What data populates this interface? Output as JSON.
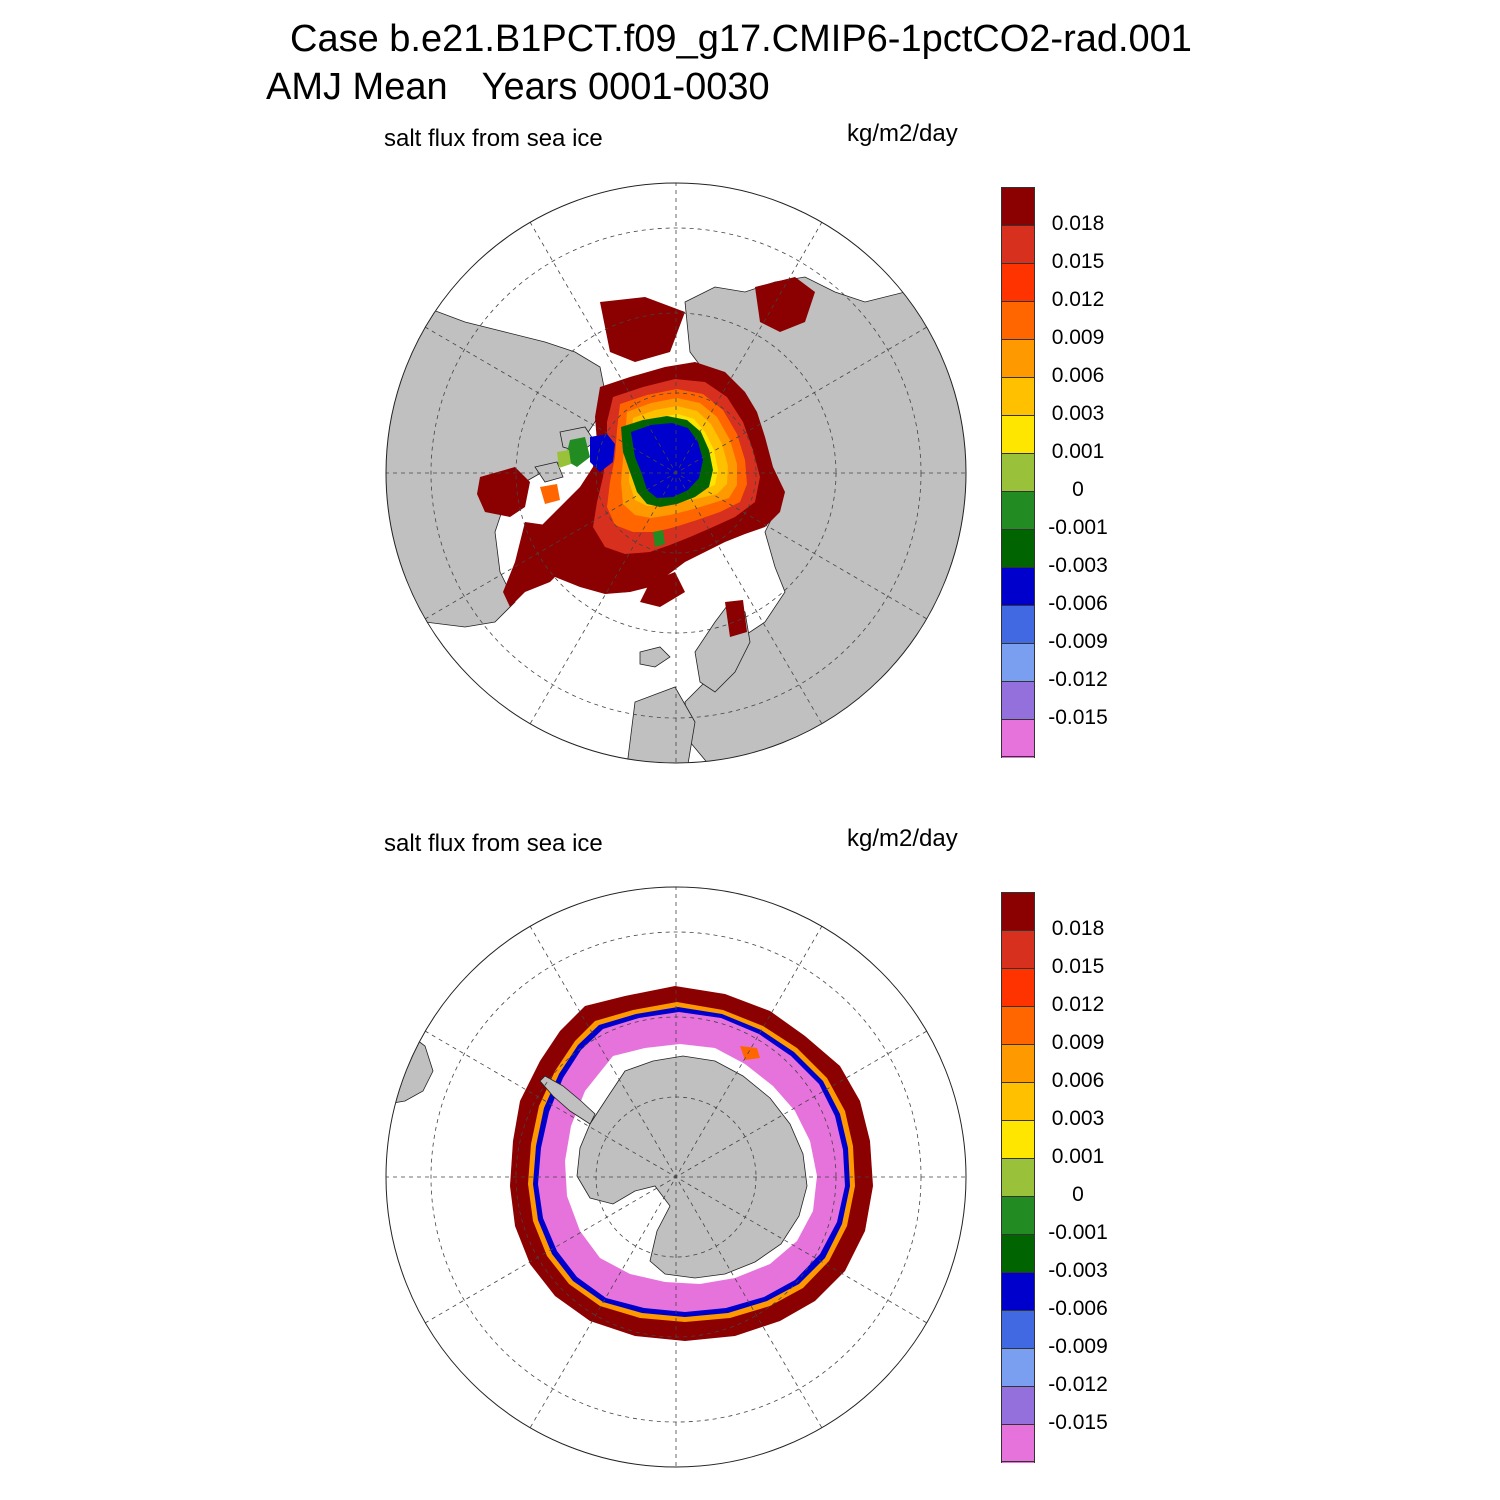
{
  "header": {
    "case_line": "Case b.e21.B1PCT.f09_g17.CMIP6-1pctCO2-rad.001",
    "period_label": "AMJ Mean",
    "years_label": "Years 0001-0030"
  },
  "panels": [
    {
      "id": "north",
      "hemisphere": "Arctic",
      "left_label": "salt flux from sea ice",
      "units": "kg/m2/day"
    },
    {
      "id": "south",
      "hemisphere": "Antarctic",
      "left_label": "salt flux from sea ice",
      "units": "kg/m2/day"
    }
  ],
  "colorbar": {
    "labels": [
      "0.018",
      "0.015",
      "0.012",
      "0.009",
      "0.006",
      "0.003",
      "0.001",
      "0",
      "-0.001",
      "-0.003",
      "-0.006",
      "-0.009",
      "-0.012",
      "-0.015"
    ],
    "colors": [
      "#8b0000",
      "#d7301f",
      "#ff3300",
      "#ff6600",
      "#ff9900",
      "#ffc000",
      "#ffe600",
      "#9ac13a",
      "#228b22",
      "#006400",
      "#0000cd",
      "#4169e1",
      "#7b9ff0",
      "#9370db",
      "#e673db"
    ]
  },
  "map_style": {
    "land_color": "#c0c0c0",
    "ocean_color": "#ffffff",
    "grid_style": "dashed"
  }
}
